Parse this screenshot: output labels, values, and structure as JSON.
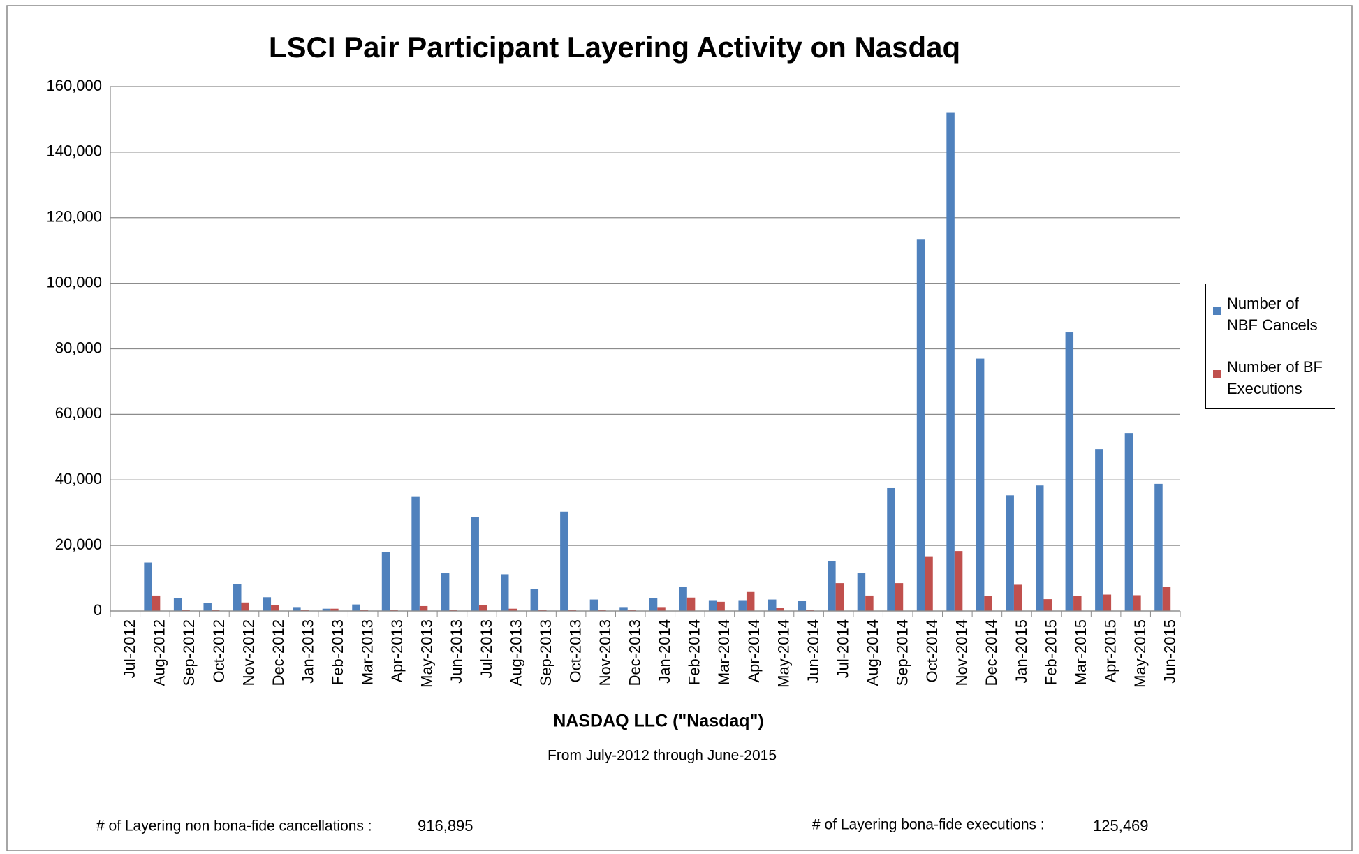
{
  "chart_data": {
    "type": "bar",
    "title": "LSCI Pair Participant Layering Activity on Nasdaq",
    "x_label": "NASDAQ LLC (\"Nasdaq\")",
    "subtitle": "From July-2012 through June-2015",
    "categories": [
      "Jul-2012",
      "Aug-2012",
      "Sep-2012",
      "Oct-2012",
      "Nov-2012",
      "Dec-2012",
      "Jan-2013",
      "Feb-2013",
      "Mar-2013",
      "Apr-2013",
      "May-2013",
      "Jun-2013",
      "Jul-2013",
      "Aug-2013",
      "Sep-2013",
      "Oct-2013",
      "Nov-2013",
      "Dec-2013",
      "Jan-2014",
      "Feb-2014",
      "Mar-2014",
      "Apr-2014",
      "May-2014",
      "Jun-2014",
      "Jul-2014",
      "Aug-2014",
      "Sep-2014",
      "Oct-2014",
      "Nov-2014",
      "Dec-2014",
      "Jan-2015",
      "Feb-2015",
      "Mar-2015",
      "Apr-2015",
      "May-2015",
      "Jun-2015"
    ],
    "series": [
      {
        "name": "Number of NBF Cancels",
        "color": "#4f81bd",
        "values": [
          0,
          14800,
          3900,
          2500,
          8200,
          4200,
          1200,
          700,
          2000,
          18000,
          34800,
          11500,
          28700,
          11200,
          6800,
          30300,
          3500,
          1200,
          3900,
          7400,
          3300,
          3300,
          3500,
          3000,
          15300,
          11500,
          37500,
          113500,
          152000,
          77000,
          35300,
          38300,
          85000,
          49400,
          54300,
          38800
        ]
      },
      {
        "name": "Number of BF Executions",
        "color": "#c0504d",
        "values": [
          0,
          4700,
          300,
          300,
          2600,
          1800,
          300,
          700,
          300,
          300,
          1500,
          300,
          1800,
          700,
          300,
          300,
          300,
          300,
          1200,
          4100,
          2800,
          5800,
          900,
          300,
          8500,
          4700,
          8500,
          16700,
          18300,
          4500,
          8000,
          3600,
          4500,
          5000,
          4800,
          7400
        ]
      }
    ],
    "ylim": [
      0,
      160000
    ],
    "yticks": [
      0,
      {
        "value": 20000,
        "label": "20,000"
      },
      {
        "value": 40000,
        "label": "40,000"
      },
      {
        "value": 60000,
        "label": "60,000"
      },
      {
        "value": 80000,
        "label": "80,000"
      },
      {
        "value": 100000,
        "label": "100,000"
      },
      {
        "value": 120000,
        "label": "120,000"
      },
      {
        "value": 140000,
        "label": "140,000"
      },
      {
        "value": 160000,
        "label": "160,000"
      }
    ],
    "grid": true,
    "legend": "right",
    "footer": [
      {
        "label": "# of Layering non bona-fide cancellations :",
        "value": "916,895"
      },
      {
        "label": "# of Layering bona-fide executions :",
        "value": "125,469"
      }
    ]
  }
}
